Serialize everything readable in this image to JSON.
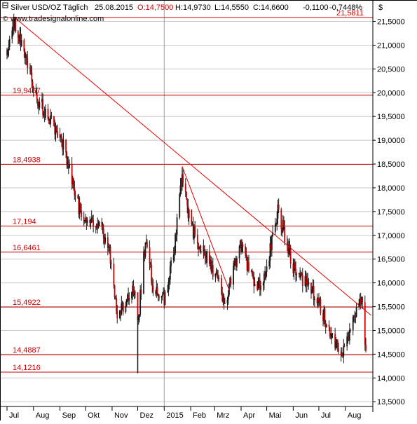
{
  "header": {
    "instrument": "Silver USD/OZ Täglich",
    "date": "25.08.2015",
    "open_label": "O:",
    "open_value": "14,7500",
    "high": "H:14,9730",
    "low": "L:14,5550",
    "close": "C:14,6600",
    "change": "-0,1100",
    "change_pct": "-0,7448%",
    "website": "www.tradesignalonline.com",
    "currency": "$"
  },
  "colors": {
    "background": "#ffffff",
    "grid": "#c8c8c8",
    "axis": "#000000",
    "candle": "#1a1a1a",
    "candle_body_down": "#cc0000",
    "level_line": "#cc0000",
    "trend_line": "#dd0000",
    "text": "#000000",
    "label_red": "#cc0000",
    "month_marker": "#9a9a9a"
  },
  "chart_data": {
    "type": "candlestick",
    "title": "Silver USD/OZ Täglich",
    "ylim": [
      13.4,
      21.95
    ],
    "yaxis_label": "$",
    "y_ticks": [
      {
        "value": 13.5,
        "label": "13,5000"
      },
      {
        "value": 14.0,
        "label": "14,0000"
      },
      {
        "value": 14.5,
        "label": "14,5000"
      },
      {
        "value": 15.0,
        "label": "15,0000"
      },
      {
        "value": 15.5,
        "label": "15,5000"
      },
      {
        "value": 16.0,
        "label": "16,0000"
      },
      {
        "value": 16.5,
        "label": "16,5000"
      },
      {
        "value": 17.0,
        "label": "17,0000"
      },
      {
        "value": 17.5,
        "label": "17,5000"
      },
      {
        "value": 18.0,
        "label": "18,0000"
      },
      {
        "value": 18.5,
        "label": "18,5000"
      },
      {
        "value": 19.0,
        "label": "19,0000"
      },
      {
        "value": 19.5,
        "label": "19,5000"
      },
      {
        "value": 20.0,
        "label": "20,0000"
      },
      {
        "value": 20.5,
        "label": "20,5000"
      },
      {
        "value": 21.0,
        "label": "21,0000"
      },
      {
        "value": 21.5,
        "label": "21,5000"
      }
    ],
    "x_domain": [
      "2014-07-01",
      "2015-08-25"
    ],
    "x_ticks": [
      {
        "date": "2014-07-01",
        "label": "Jul"
      },
      {
        "date": "2014-08-01",
        "label": "Aug"
      },
      {
        "date": "2014-09-01",
        "label": "Sep"
      },
      {
        "date": "2014-10-01",
        "label": "Okt"
      },
      {
        "date": "2014-11-01",
        "label": "Nov"
      },
      {
        "date": "2014-12-01",
        "label": "Dez"
      },
      {
        "date": "2015-01-01",
        "label": "2015"
      },
      {
        "date": "2015-02-01",
        "label": "Feb"
      },
      {
        "date": "2015-03-01",
        "label": "Mrz"
      },
      {
        "date": "2015-04-01",
        "label": "Apr"
      },
      {
        "date": "2015-05-01",
        "label": "Mai"
      },
      {
        "date": "2015-06-01",
        "label": "Jun"
      },
      {
        "date": "2015-07-01",
        "label": "Jul"
      },
      {
        "date": "2015-08-01",
        "label": "Aug"
      }
    ],
    "year_marker_date": "2015-01-01",
    "horizontal_levels": [
      {
        "value": 21.5811,
        "label": "21,5811",
        "label_side": "right"
      },
      {
        "value": 19.9467,
        "label": "19,9467",
        "label_side": "left"
      },
      {
        "value": 18.4938,
        "label": "18,4938",
        "label_side": "left"
      },
      {
        "value": 17.194,
        "label": "17,194",
        "label_side": "left"
      },
      {
        "value": 16.6461,
        "label": "16,6461",
        "label_side": "left"
      },
      {
        "value": 15.4922,
        "label": "15,4922",
        "label_side": "left"
      },
      {
        "value": 14.4887,
        "label": "14,4887",
        "label_side": "left"
      },
      {
        "value": 14.1216,
        "label": "14,1216",
        "label_side": "left"
      }
    ],
    "trend_lines": [
      {
        "from": {
          "date": "2014-07-10",
          "value": 21.58
        },
        "to": {
          "date": "2015-08-31",
          "value": 15.32
        }
      },
      {
        "from": {
          "date": "2015-01-22",
          "value": 18.45
        },
        "to": {
          "date": "2015-03-18",
          "value": 15.85
        }
      }
    ],
    "price_anchors": [
      {
        "date": "2014-07-01",
        "value": 20.9
      },
      {
        "date": "2014-07-10",
        "value": 21.5
      },
      {
        "date": "2014-07-22",
        "value": 20.8
      },
      {
        "date": "2014-08-05",
        "value": 19.9
      },
      {
        "date": "2014-08-15",
        "value": 19.6
      },
      {
        "date": "2014-08-28",
        "value": 19.2
      },
      {
        "date": "2014-09-10",
        "value": 18.6
      },
      {
        "date": "2014-09-20",
        "value": 17.7
      },
      {
        "date": "2014-10-01",
        "value": 17.2
      },
      {
        "date": "2014-10-10",
        "value": 17.3
      },
      {
        "date": "2014-10-20",
        "value": 17.1
      },
      {
        "date": "2014-10-28",
        "value": 16.8
      },
      {
        "date": "2014-11-03",
        "value": 15.9
      },
      {
        "date": "2014-11-07",
        "value": 15.3
      },
      {
        "date": "2014-11-15",
        "value": 15.5
      },
      {
        "date": "2014-11-25",
        "value": 15.9
      },
      {
        "date": "2014-12-02",
        "value": 15.3
      },
      {
        "date": "2014-12-10",
        "value": 16.9
      },
      {
        "date": "2014-12-20",
        "value": 15.8
      },
      {
        "date": "2015-01-02",
        "value": 15.7
      },
      {
        "date": "2015-01-12",
        "value": 16.6
      },
      {
        "date": "2015-01-22",
        "value": 18.3
      },
      {
        "date": "2015-02-01",
        "value": 17.2
      },
      {
        "date": "2015-02-12",
        "value": 16.8
      },
      {
        "date": "2015-02-25",
        "value": 16.4
      },
      {
        "date": "2015-03-05",
        "value": 16.0
      },
      {
        "date": "2015-03-12",
        "value": 15.5
      },
      {
        "date": "2015-03-20",
        "value": 16.0
      },
      {
        "date": "2015-03-31",
        "value": 16.8
      },
      {
        "date": "2015-04-10",
        "value": 16.3
      },
      {
        "date": "2015-04-20",
        "value": 15.9
      },
      {
        "date": "2015-05-01",
        "value": 16.3
      },
      {
        "date": "2015-05-14",
        "value": 17.6
      },
      {
        "date": "2015-05-25",
        "value": 16.8
      },
      {
        "date": "2015-06-05",
        "value": 16.1
      },
      {
        "date": "2015-06-15",
        "value": 16.0
      },
      {
        "date": "2015-06-25",
        "value": 15.8
      },
      {
        "date": "2015-07-05",
        "value": 15.4
      },
      {
        "date": "2015-07-12",
        "value": 15.1
      },
      {
        "date": "2015-07-22",
        "value": 14.7
      },
      {
        "date": "2015-07-31",
        "value": 14.6
      },
      {
        "date": "2015-08-07",
        "value": 14.9
      },
      {
        "date": "2015-08-12",
        "value": 15.4
      },
      {
        "date": "2015-08-18",
        "value": 15.6
      },
      {
        "date": "2015-08-21",
        "value": 15.5
      },
      {
        "date": "2015-08-25",
        "value": 14.66
      }
    ],
    "outlier_wicks": [
      {
        "date": "2014-12-01",
        "high": 15.3,
        "low": 14.1
      }
    ]
  }
}
